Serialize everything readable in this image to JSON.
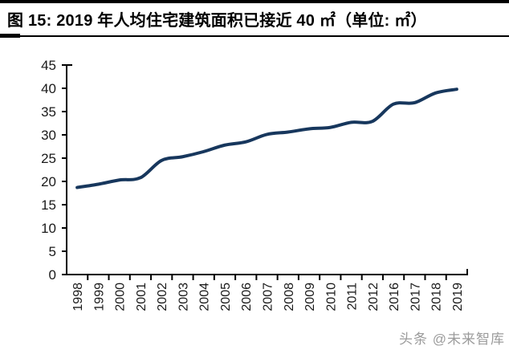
{
  "title": "图 15: 2019 年人均住宅建筑面积已接近 40 ㎡（单位: ㎡）",
  "watermark": "头条 @未来智库",
  "colors": {
    "line": "#17375D",
    "axis": "#000000",
    "tick_label": "#1a1a1a",
    "title_text": "#000000",
    "watermark_gray": "#9b9b9b"
  },
  "chart_data": {
    "type": "line",
    "title": "2019 年人均住宅建筑面积已接近 40 ㎡",
    "unit": "㎡",
    "categories": [
      "1998",
      "1999",
      "2000",
      "2001",
      "2002",
      "2003",
      "2004",
      "2005",
      "2006",
      "2007",
      "2008",
      "2009",
      "2010",
      "2011",
      "2012",
      "2016",
      "2017",
      "2018",
      "2019"
    ],
    "values": [
      18.7,
      19.4,
      20.3,
      20.8,
      24.5,
      25.3,
      26.4,
      27.8,
      28.5,
      30.1,
      30.6,
      31.3,
      31.6,
      32.7,
      32.9,
      36.6,
      36.9,
      39.0,
      39.8
    ],
    "xlabel": "",
    "ylabel": "",
    "ylim": [
      0,
      45
    ],
    "ytick_step": 5,
    "grid": false,
    "legend_position": "none",
    "smooth": true
  }
}
